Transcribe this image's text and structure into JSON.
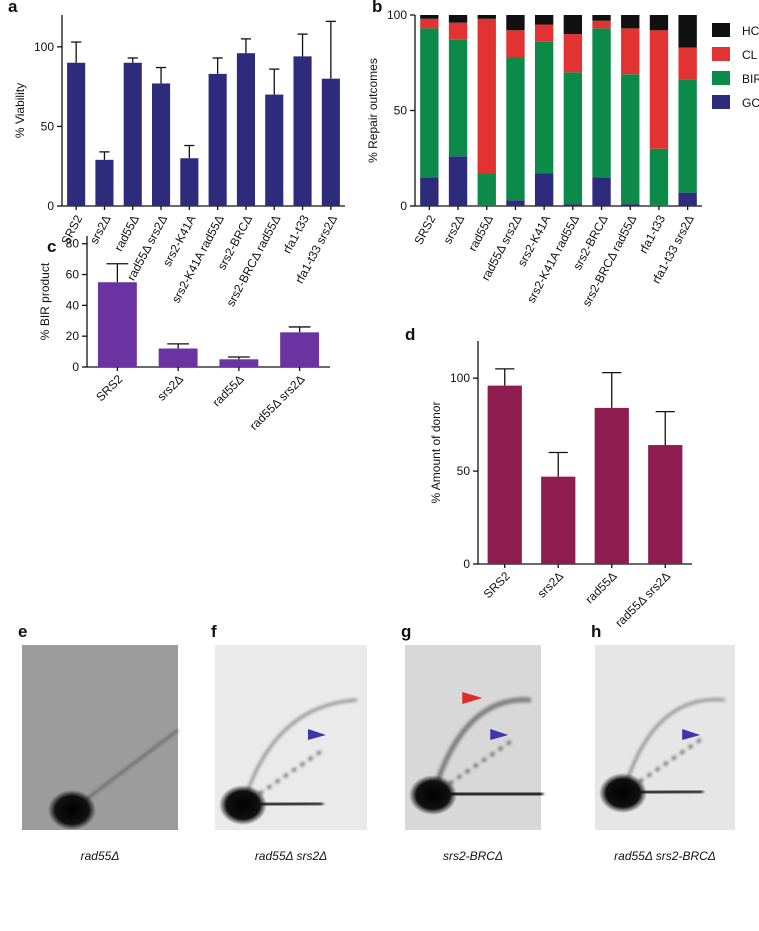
{
  "chart_data": [
    {
      "type": "bar",
      "panel": "a",
      "ylabel": "% Viability",
      "color": "#2f2b7c",
      "categories": [
        "SRS2",
        "srs2Δ",
        "rad55Δ",
        "rad55Δ srs2Δ",
        "srs2-K41A",
        "srs2-K41A rad55Δ",
        "srs2-BRCΔ",
        "srs2-BRCΔ rad55Δ",
        "rfa1-t33",
        "rfa1-t33 srs2Δ"
      ],
      "values": [
        90,
        29,
        90,
        77,
        30,
        83,
        96,
        70,
        94,
        80
      ],
      "errors": [
        13,
        5,
        3,
        10,
        8,
        10,
        9,
        16,
        14,
        36
      ],
      "ylim": [
        0,
        120
      ],
      "yticks": [
        0,
        50,
        100
      ]
    },
    {
      "type": "stacked_bar",
      "panel": "b",
      "ylabel": "% Repair outcomes",
      "categories": [
        "SRS2",
        "srs2Δ",
        "rad55Δ",
        "rad55Δ srs2Δ",
        "srs2-K41A",
        "srs2-K41A rad55Δ",
        "srs2-BRCΔ",
        "srs2-BRCΔ rad55Δ",
        "rfa1-t33",
        "rfa1-t33 srs2Δ"
      ],
      "series": [
        {
          "name": "GC",
          "color": "#2f2b7c",
          "values": [
            15,
            26,
            0,
            3,
            17,
            1,
            15,
            1,
            0,
            7
          ]
        },
        {
          "name": "BIR",
          "color": "#0c8a4a",
          "values": [
            78,
            61,
            17,
            75,
            69,
            69,
            78,
            68,
            30,
            59
          ]
        },
        {
          "name": "CL",
          "color": "#e23232",
          "values": [
            5,
            9,
            81,
            14,
            9,
            20,
            4,
            24,
            62,
            17
          ]
        },
        {
          "name": "HC",
          "color": "#111111",
          "values": [
            2,
            4,
            2,
            8,
            5,
            10,
            3,
            7,
            8,
            17
          ]
        }
      ],
      "ylim": [
        0,
        100
      ],
      "yticks": [
        0,
        50,
        100
      ]
    },
    {
      "type": "bar",
      "panel": "c",
      "ylabel": "% BIR product",
      "color": "#6a33a1",
      "categories": [
        "SRS2",
        "srs2Δ",
        "rad55Δ",
        "rad55Δ srs2Δ"
      ],
      "values": [
        55,
        12,
        5,
        22.5
      ],
      "errors": [
        12,
        3,
        1.5,
        3.5
      ],
      "ylim": [
        0,
        85
      ],
      "yticks": [
        0,
        20,
        40,
        60,
        80
      ]
    },
    {
      "type": "bar",
      "panel": "d",
      "ylabel": "% Amount of donor",
      "color": "#8e1c4f",
      "categories": [
        "SRS2",
        "srs2Δ",
        "rad55Δ",
        "rad55Δ srs2Δ"
      ],
      "values": [
        96,
        47,
        84,
        64
      ],
      "errors": [
        9,
        13,
        19,
        18
      ],
      "ylim": [
        0,
        120
      ],
      "yticks": [
        0,
        50,
        100
      ]
    }
  ],
  "gels": [
    {
      "panel": "e",
      "caption": "rad55Δ"
    },
    {
      "panel": "f",
      "caption": "rad55Δ srs2Δ"
    },
    {
      "panel": "g",
      "caption": "srs2-BRCΔ"
    },
    {
      "panel": "h",
      "caption": "rad55Δ srs2-BRCΔ"
    }
  ]
}
